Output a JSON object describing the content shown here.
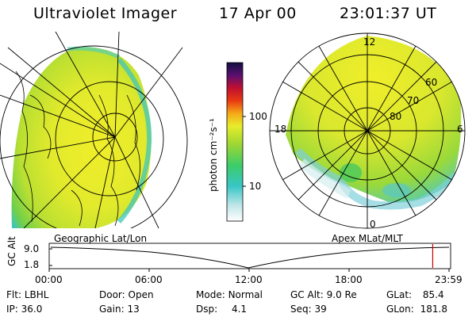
{
  "header": {
    "title": "Ultraviolet Imager",
    "date": "17 Apr 00",
    "time": "23:01:37 UT"
  },
  "colorbar": {
    "unit": "photon cm⁻²s⁻¹",
    "ticks": [
      "100",
      "10"
    ]
  },
  "left_panel": {
    "caption": "Geographic Lat/Lon"
  },
  "right_panel": {
    "caption": "Apex MLat/MLT",
    "mlt_labels": [
      "12",
      "18",
      "6",
      "0"
    ],
    "mlat_labels": [
      "60",
      "70",
      "80"
    ]
  },
  "timeline": {
    "ylabel": "GC Alt",
    "yticks": [
      "9.0",
      "1.8"
    ],
    "xticks": [
      "00:00",
      "06:00",
      "12:00",
      "18:00",
      "23:59"
    ],
    "marker_fraction": 0.9592
  },
  "info": {
    "filter_label": "Flt:",
    "filter_value": "LBHL",
    "ip_label": "IP:",
    "ip_value": "36.0",
    "door_label": "Door:",
    "door_value": "Open",
    "gain_label": "Gain:",
    "gain_value": "13",
    "mode_label": "Mode:",
    "mode_value": "Normal",
    "dsp_label": "Dsp:",
    "dsp_value": "4.1",
    "gcalt_label": "GC Alt:",
    "gcalt_value": "9.0 Re",
    "seq_label": "Seq:",
    "seq_value": "39",
    "glat_label": "GLat:",
    "glat_value": "85.4",
    "glon_label": "GLon:",
    "glon_value": "181.8"
  },
  "colors": {
    "aurora_yellow": "#e6ea2a",
    "aurora_green": "#8ed23a",
    "aurora_cyan": "#35c8c0",
    "grid_line": "#000000",
    "time_marker": "#cc0000"
  }
}
